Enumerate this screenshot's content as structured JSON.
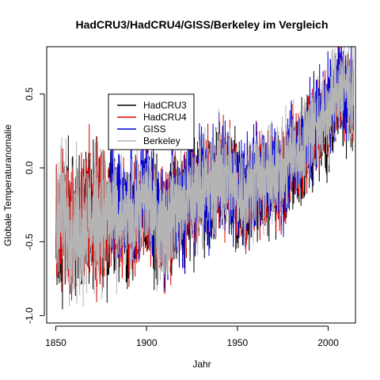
{
  "chart_data": {
    "type": "line",
    "title": "HadCRU3/HadCRU4/GISS/Berkeley im Vergleich",
    "xlabel": "Jahr",
    "ylabel": "Globale Temperaturanomalie",
    "xlim": [
      1845,
      2015
    ],
    "ylim": [
      -1.05,
      0.82
    ],
    "x_ticks": [
      1850,
      1900,
      1950,
      2000
    ],
    "x_tick_labels": [
      "1850",
      "1900",
      "1950",
      "2000"
    ],
    "y_ticks": [
      -1.0,
      -0.5,
      0.0,
      0.5
    ],
    "y_tick_labels": [
      "-1.0",
      "-0.5",
      "0.0",
      "0.5"
    ],
    "grid": false,
    "legend_position": "upper-left",
    "series": [
      {
        "name": "HadCRU3",
        "color": "#000000",
        "start": 1850,
        "end": 2013,
        "x": [
          1850,
          1855,
          1860,
          1865,
          1870,
          1875,
          1880,
          1885,
          1890,
          1895,
          1900,
          1905,
          1910,
          1915,
          1920,
          1925,
          1930,
          1935,
          1940,
          1945,
          1950,
          1955,
          1960,
          1965,
          1970,
          1975,
          1980,
          1985,
          1990,
          1995,
          2000,
          2005,
          2010,
          2013
        ],
        "y": [
          -0.4,
          -0.32,
          -0.42,
          -0.36,
          -0.3,
          -0.38,
          -0.28,
          -0.35,
          -0.37,
          -0.32,
          -0.22,
          -0.38,
          -0.46,
          -0.33,
          -0.28,
          -0.22,
          -0.16,
          -0.18,
          -0.06,
          -0.08,
          -0.22,
          -0.24,
          -0.1,
          -0.15,
          -0.08,
          -0.14,
          0.06,
          0.02,
          0.19,
          0.24,
          0.3,
          0.46,
          0.45,
          0.38
        ]
      },
      {
        "name": "HadCRU4",
        "color": "#dd0000",
        "start": 1850,
        "end": 2013,
        "x": [
          1850,
          1855,
          1860,
          1865,
          1870,
          1875,
          1880,
          1885,
          1890,
          1895,
          1900,
          1905,
          1910,
          1915,
          1920,
          1925,
          1930,
          1935,
          1940,
          1945,
          1950,
          1955,
          1960,
          1965,
          1970,
          1975,
          1980,
          1985,
          1990,
          1995,
          2000,
          2005,
          2010,
          2013
        ],
        "y": [
          -0.38,
          -0.3,
          -0.4,
          -0.34,
          -0.28,
          -0.36,
          -0.26,
          -0.34,
          -0.35,
          -0.3,
          -0.2,
          -0.36,
          -0.44,
          -0.31,
          -0.27,
          -0.21,
          -0.15,
          -0.17,
          -0.05,
          -0.07,
          -0.2,
          -0.22,
          -0.08,
          -0.14,
          -0.07,
          -0.12,
          0.08,
          0.04,
          0.22,
          0.28,
          0.33,
          0.48,
          0.48,
          0.42
        ]
      },
      {
        "name": "GISS",
        "color": "#0000dd",
        "start": 1880,
        "end": 2013,
        "x": [
          1880,
          1885,
          1890,
          1895,
          1900,
          1905,
          1910,
          1915,
          1920,
          1925,
          1930,
          1935,
          1940,
          1945,
          1950,
          1955,
          1960,
          1965,
          1970,
          1975,
          1980,
          1985,
          1990,
          1995,
          2000,
          2005,
          2010,
          2013
        ],
        "y": [
          -0.2,
          -0.24,
          -0.28,
          -0.22,
          -0.14,
          -0.3,
          -0.38,
          -0.25,
          -0.24,
          -0.2,
          -0.12,
          -0.14,
          0.0,
          -0.04,
          -0.18,
          -0.19,
          -0.04,
          -0.1,
          -0.02,
          -0.08,
          0.14,
          0.1,
          0.28,
          0.33,
          0.38,
          0.55,
          0.55,
          0.48
        ]
      },
      {
        "name": "Berkeley",
        "color": "#b4b4b4",
        "start": 1850,
        "end": 2013,
        "x": [
          1850,
          1855,
          1860,
          1865,
          1870,
          1875,
          1880,
          1885,
          1890,
          1895,
          1900,
          1905,
          1910,
          1915,
          1920,
          1925,
          1930,
          1935,
          1940,
          1945,
          1950,
          1955,
          1960,
          1965,
          1970,
          1975,
          1980,
          1985,
          1990,
          1995,
          2000,
          2005,
          2010,
          2013
        ],
        "y": [
          -0.36,
          -0.28,
          -0.44,
          -0.4,
          -0.32,
          -0.34,
          -0.3,
          -0.38,
          -0.36,
          -0.3,
          -0.2,
          -0.34,
          -0.4,
          -0.28,
          -0.24,
          -0.2,
          -0.12,
          -0.14,
          -0.04,
          -0.06,
          -0.16,
          -0.18,
          -0.06,
          -0.1,
          -0.02,
          -0.06,
          0.12,
          0.08,
          0.26,
          0.32,
          0.38,
          0.52,
          0.55,
          0.5
        ]
      }
    ]
  }
}
